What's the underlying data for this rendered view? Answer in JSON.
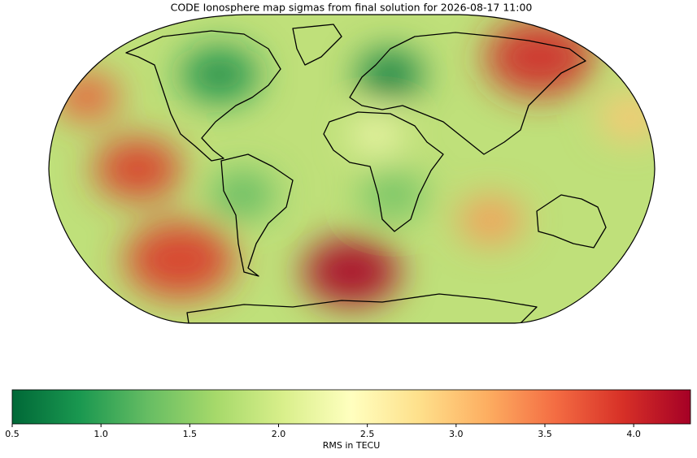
{
  "chart_data": {
    "type": "map",
    "title": "CODE Ionosphere map sigmas from final solution for 2026-08-17 11:00",
    "colorbar_label": "RMS in TECU",
    "clim": [
      0.5,
      4.32
    ],
    "cticks": [
      0.5,
      {
        "value": 1,
        "label": "1.0"
      },
      1.5,
      {
        "value": 2,
        "label": "2.0"
      },
      2.5,
      {
        "value": 3,
        "label": "3.0"
      },
      3.5,
      {
        "value": 4,
        "label": "4.0"
      }
    ],
    "colormap": [
      "#006837",
      "#1a9850",
      "#66bd63",
      "#a6d96a",
      "#d9ef8b",
      "#ffffbf",
      "#fee08b",
      "#fdae61",
      "#f46d43",
      "#d73027",
      "#a50026"
    ],
    "field": [
      {
        "lon": -127,
        "lat": 0,
        "value": 3.9,
        "radius": 20
      },
      {
        "lon": -110,
        "lat": -53,
        "value": 3.9,
        "radius": 25
      },
      {
        "lon": 0,
        "lat": -60,
        "value": 4.3,
        "radius": 22
      },
      {
        "lon": 125,
        "lat": 65,
        "value": 4.0,
        "radius": 25
      },
      {
        "lon": -165,
        "lat": 42,
        "value": 3.7,
        "radius": 15
      },
      {
        "lon": 85,
        "lat": -30,
        "value": 3.3,
        "radius": 15
      },
      {
        "lon": 170,
        "lat": 30,
        "value": 3.0,
        "radius": 15
      },
      {
        "lon": 15,
        "lat": 20,
        "value": 2.3,
        "radius": 12
      },
      {
        "lon": 25,
        "lat": 55,
        "value": 0.6,
        "radius": 15
      },
      {
        "lon": -85,
        "lat": 55,
        "value": 0.8,
        "radius": 18
      },
      {
        "lon": -65,
        "lat": -15,
        "value": 1.2,
        "radius": 15
      },
      {
        "lon": 25,
        "lat": -15,
        "value": 1.3,
        "radius": 15
      }
    ]
  }
}
